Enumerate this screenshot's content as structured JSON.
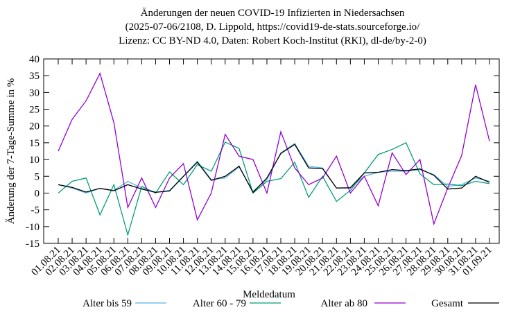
{
  "chart_data": {
    "type": "line",
    "title": [
      "Änderungen der neuen COVID-19 Infizierten in Niedersachsen",
      "(2025-07-06/2108, D. Lippold, https://covid19-de-stats.sourceforge.io/",
      "Lizenz: CC BY-ND 4.0, Daten: Robert Koch-Institut (RKI), dl-de/by-2-0)"
    ],
    "x_label": "Meldedatum",
    "y_label": "Änderung der 7-Tage-Summe in %",
    "categories": [
      "01.08.21",
      "02.08.21",
      "03.08.21",
      "04.08.21",
      "05.08.21",
      "06.08.21",
      "07.08.21",
      "08.08.21",
      "09.08.21",
      "10.08.21",
      "11.08.21",
      "12.08.21",
      "13.08.21",
      "14.08.21",
      "15.08.21",
      "16.08.21",
      "17.08.21",
      "18.08.21",
      "19.08.21",
      "20.08.21",
      "21.08.21",
      "22.08.21",
      "23.08.21",
      "24.08.21",
      "25.08.21",
      "26.08.21",
      "27.08.21",
      "28.08.21",
      "29.08.21",
      "30.08.21",
      "31.08.21",
      "01.09.21"
    ],
    "series": [
      {
        "name": "Alter bis 59",
        "color": "#56b4e9",
        "values": [
          2.5,
          1.5,
          0,
          1.4,
          0.8,
          3.5,
          1.5,
          0.3,
          0.5,
          5,
          9.5,
          4,
          4.5,
          7.8,
          0.5,
          4,
          12,
          14.8,
          8,
          7.5,
          1.5,
          1.5,
          5,
          6.2,
          6.5,
          6.5,
          7,
          5.5,
          2,
          2.5,
          4.5,
          3.5
        ]
      },
      {
        "name": "Alter 60 - 79",
        "color": "#009e73",
        "values": [
          0,
          3.5,
          4.5,
          -6.5,
          2.5,
          -12.5,
          2,
          0,
          6.3,
          2.5,
          8.5,
          6.5,
          15.2,
          13.3,
          0,
          3.5,
          4.3,
          9.2,
          -1.3,
          5,
          -2.5,
          0.8,
          6,
          11.5,
          13,
          15,
          5.7,
          2.5,
          2.7,
          2.2,
          3.5,
          2.8
        ]
      },
      {
        "name": "Alter ab 80",
        "color": "#9400d3",
        "values": [
          12.5,
          22,
          27.5,
          35.7,
          21,
          -4.3,
          4.5,
          -4.3,
          4.5,
          8.8,
          -8,
          0,
          17.5,
          11,
          10,
          0,
          18.3,
          7.5,
          2.5,
          4.5,
          11,
          0,
          5,
          -3.8,
          12,
          5.5,
          10,
          -9.2,
          1.5,
          11.2,
          32.3,
          15.5
        ]
      },
      {
        "name": "Gesamt",
        "color": "#000000",
        "values": [
          2.5,
          1.7,
          0.3,
          1.4,
          0.7,
          2.5,
          1.2,
          0.2,
          0.7,
          5,
          9.2,
          3.8,
          5,
          8,
          0.2,
          4.5,
          11.8,
          14.5,
          7.5,
          7.3,
          1.5,
          1.6,
          6,
          6.2,
          7,
          6.7,
          7.2,
          5.3,
          1.2,
          1.5,
          5,
          3.2
        ]
      }
    ],
    "ylim": [
      -15,
      40
    ],
    "yticks": [
      -15,
      -10,
      -5,
      0,
      5,
      10,
      15,
      20,
      25,
      30,
      35,
      40
    ]
  }
}
